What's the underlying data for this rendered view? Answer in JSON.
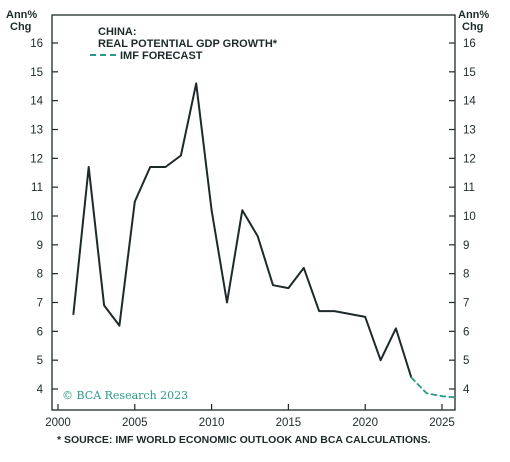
{
  "chart_data": {
    "type": "line",
    "title": "CHINA:",
    "subtitle": "REAL POTENTIAL GDP GROWTH*",
    "ylabel_left": [
      "Ann%",
      "Chg"
    ],
    "ylabel_right": [
      "Ann%",
      "Chg"
    ],
    "xlim": [
      2000,
      2025
    ],
    "ylim": [
      3.5,
      16.5
    ],
    "x_ticks": [
      2000,
      2005,
      2010,
      2015,
      2020,
      2025
    ],
    "y_ticks": [
      4,
      5,
      6,
      7,
      8,
      9,
      10,
      11,
      12,
      13,
      14,
      15,
      16
    ],
    "series": [
      {
        "name": "",
        "style": "solid",
        "color": "#1d2a2a",
        "x": [
          2001,
          2002,
          2003,
          2004,
          2005,
          2006,
          2007,
          2008,
          2009,
          2010,
          2011,
          2012,
          2013,
          2014,
          2015,
          2016,
          2017,
          2018,
          2019,
          2020,
          2021,
          2022,
          2023
        ],
        "y": [
          6.6,
          11.7,
          6.9,
          6.2,
          10.5,
          11.7,
          11.7,
          12.1,
          14.6,
          10.2,
          7.0,
          10.2,
          9.3,
          7.6,
          7.5,
          8.2,
          6.7,
          6.7,
          6.6,
          6.5,
          5.0,
          6.1,
          4.4
        ]
      },
      {
        "name": "IMF FORECAST",
        "style": "dashed",
        "color": "#2a9a86",
        "x": [
          2023,
          2024,
          2025,
          2026
        ],
        "y": [
          4.4,
          3.85,
          3.75,
          3.7
        ]
      }
    ],
    "legend": {
      "position": "top-left",
      "entry": "IMF FORECAST"
    },
    "credit": "© BCA Research 2023",
    "source_note": "* SOURCE: IMF WORLD ECONOMIC OUTLOOK AND BCA CALCULATIONS.",
    "grid": false
  }
}
